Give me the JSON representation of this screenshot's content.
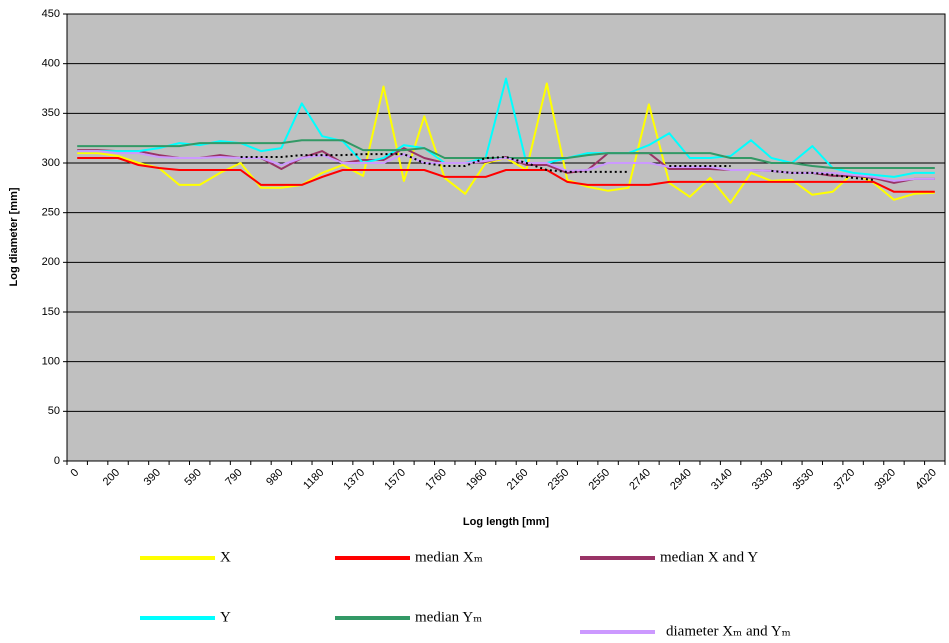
{
  "chart_data": {
    "type": "line",
    "xlabel": "Log length [mm]",
    "ylabel": "Log diameter [mm]",
    "ylim": [
      0,
      450
    ],
    "yticks": [
      0,
      50,
      100,
      150,
      200,
      250,
      300,
      350,
      400,
      450
    ],
    "grid": true,
    "background": "#c0c0c0",
    "categories": [
      "0",
      null,
      "200",
      null,
      "390",
      null,
      "590",
      null,
      "790",
      null,
      "980",
      null,
      "1180",
      null,
      "1370",
      null,
      "1570",
      null,
      "1760",
      null,
      "1960",
      null,
      "2160",
      null,
      "2350",
      null,
      "2550",
      null,
      "2740",
      null,
      "2940",
      null,
      "3140",
      null,
      "3330",
      null,
      "3530",
      null,
      "3720",
      null,
      "3920",
      null,
      "4020"
    ],
    "series": [
      {
        "name": "X",
        "color": "#ffff00",
        "values": [
          310,
          310,
          307,
          300,
          295,
          278,
          278,
          290,
          300,
          275,
          275,
          278,
          290,
          298,
          287,
          377,
          282,
          347,
          285,
          269,
          300,
          305,
          293,
          380,
          283,
          276,
          272,
          275,
          359,
          280,
          266,
          285,
          260,
          290,
          282,
          283,
          268,
          271,
          290,
          280,
          263,
          269,
          270
        ]
      },
      {
        "name": "median Xₘ",
        "color": "#ff0000",
        "values": [
          305,
          305,
          305,
          298,
          295,
          293,
          293,
          293,
          293,
          278,
          278,
          278,
          286,
          293,
          293,
          293,
          293,
          293,
          286,
          286,
          286,
          293,
          293,
          293,
          281,
          278,
          278,
          278,
          278,
          281,
          281,
          281,
          281,
          281,
          281,
          281,
          281,
          281,
          281,
          281,
          271,
          271,
          271
        ]
      },
      {
        "name": "median X and Y",
        "color": "#993366",
        "values": [
          313,
          313,
          312,
          312,
          308,
          305,
          305,
          308,
          305,
          305,
          294,
          305,
          312,
          300,
          303,
          303,
          315,
          305,
          300,
          300,
          301,
          306,
          298,
          298,
          290,
          293,
          310,
          310,
          310,
          294,
          294,
          294,
          293,
          293,
          292,
          290,
          290,
          287,
          287,
          285,
          280,
          284,
          284
        ]
      },
      {
        "name": "Y",
        "color": "#00ffff",
        "values": [
          312,
          312,
          312,
          312,
          315,
          320,
          318,
          322,
          320,
          312,
          315,
          360,
          327,
          322,
          300,
          305,
          318,
          315,
          300,
          300,
          305,
          385,
          300,
          300,
          305,
          310,
          310,
          310,
          318,
          330,
          305,
          305,
          307,
          323,
          305,
          300,
          317,
          295,
          290,
          288,
          286,
          290,
          290
        ]
      },
      {
        "name": "median Yₘ",
        "color": "#339966",
        "values": [
          317,
          317,
          317,
          317,
          317,
          317,
          320,
          320,
          320,
          320,
          320,
          323,
          323,
          323,
          313,
          313,
          313,
          315,
          305,
          305,
          305,
          305,
          305,
          305,
          305,
          308,
          310,
          310,
          310,
          310,
          310,
          310,
          305,
          305,
          300,
          300,
          297,
          295,
          295,
          295,
          295,
          295,
          295
        ]
      },
      {
        "name": "diameter Xₘ and Yₘ",
        "color": "#cc99ff",
        "values": [
          312,
          312,
          310,
          310,
          306,
          305,
          305,
          306,
          305,
          305,
          298,
          305,
          308,
          300,
          300,
          300,
          309,
          300,
          300,
          300,
          302,
          305,
          300,
          300,
          292,
          293,
          300,
          300,
          300,
          296,
          296,
          296,
          293,
          293,
          292,
          290,
          290,
          290,
          288,
          286,
          282,
          284,
          284
        ]
      },
      {
        "color": "#000000",
        "line_style": "dotted",
        "values": [
          null,
          null,
          null,
          null,
          null,
          null,
          null,
          null,
          306,
          306,
          306,
          308,
          308,
          308,
          309,
          309,
          309,
          300,
          297,
          297,
          305,
          306,
          300,
          293,
          291,
          291,
          291,
          291,
          null,
          297,
          297,
          297,
          297,
          null,
          292,
          290,
          290,
          288,
          285,
          283,
          null,
          null,
          null
        ]
      }
    ]
  }
}
